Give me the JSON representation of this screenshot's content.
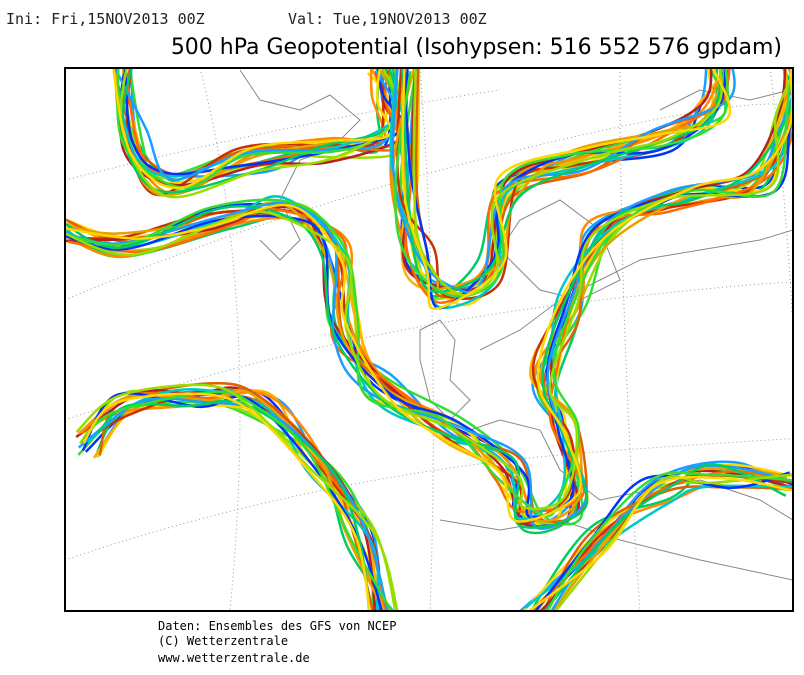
{
  "header": {
    "init": "Ini: Fri,15NOV2013 00Z",
    "valid": "Val: Tue,19NOV2013 00Z",
    "title": "500 hPa Geopotential (Isohypsen: 516 552 576 gpdam)"
  },
  "footer": {
    "lines": [
      "Daten: Ensembles des GFS von NCEP",
      "(C) Wetterzentrale",
      "www.wetterzentrale.de"
    ]
  }
}
